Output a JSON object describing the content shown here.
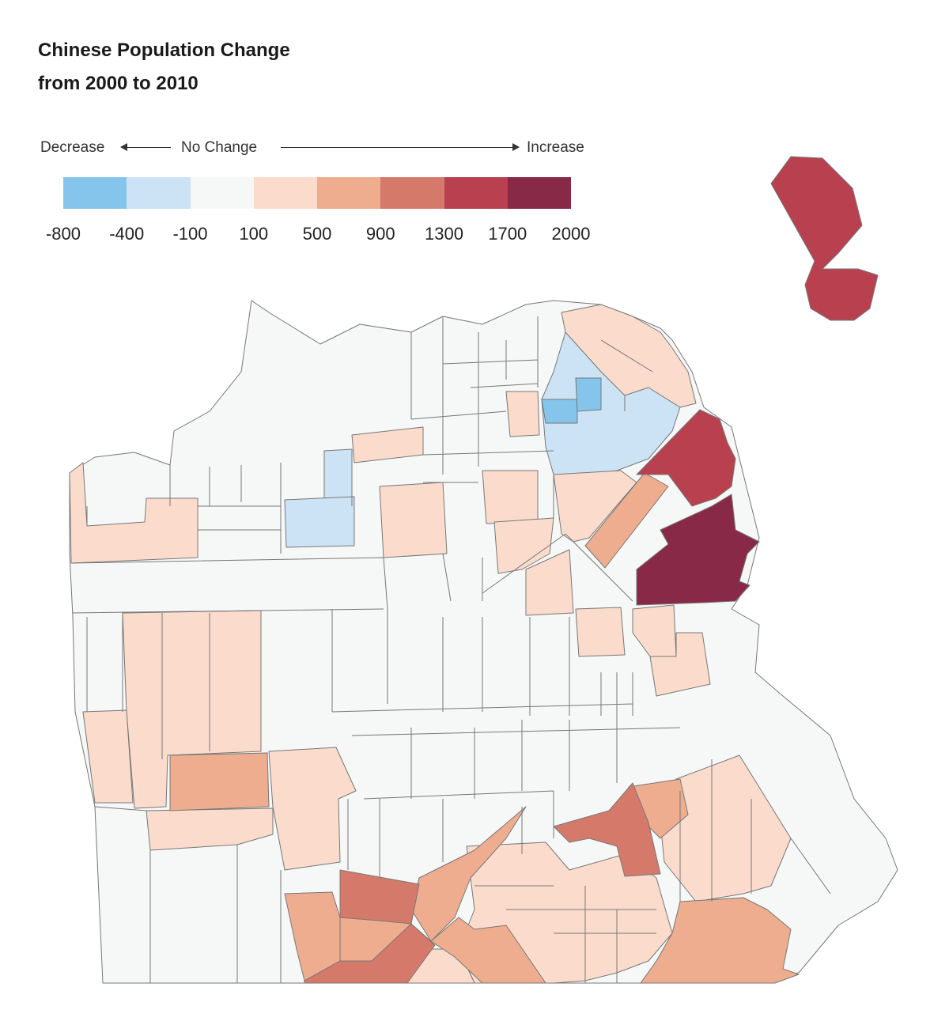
{
  "title": {
    "line1": "Chinese Population Change",
    "line2": "from 2000 to 2010"
  },
  "legend": {
    "decrease_label": "Decrease",
    "no_change_label": "No Change",
    "increase_label": "Increase",
    "bins": [
      {
        "from": -800,
        "to": -400,
        "color": "#86c5eb"
      },
      {
        "from": -400,
        "to": -100,
        "color": "#cce3f5"
      },
      {
        "from": -100,
        "to": 100,
        "color": "#f6f7f7"
      },
      {
        "from": 100,
        "to": 500,
        "color": "#fbdccc"
      },
      {
        "from": 500,
        "to": 900,
        "color": "#efad8f"
      },
      {
        "from": 900,
        "to": 1300,
        "color": "#d57a6a"
      },
      {
        "from": 1300,
        "to": 1700,
        "color": "#b9404f"
      },
      {
        "from": 1700,
        "to": 2000,
        "color": "#882948"
      }
    ],
    "ticks": [
      "-800",
      "-400",
      "-100",
      "100",
      "500",
      "900",
      "1300",
      "1700",
      "2000"
    ]
  },
  "colors": {
    "border": "#777777",
    "no_change_fill": "#f6f7f7"
  }
}
